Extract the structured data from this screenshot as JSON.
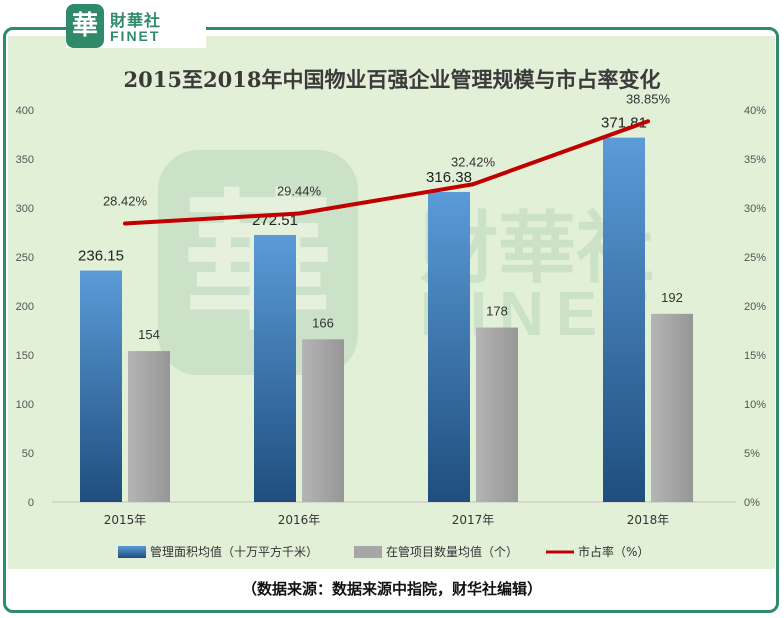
{
  "logo": {
    "mark": "華",
    "name_cn": "財華社",
    "name_en": "FINET"
  },
  "watermark": {
    "mark": "華",
    "name_cn": "財華社",
    "name_en": "FINET"
  },
  "source_note": "（数据来源：数据来源中指院，财华社编辑）",
  "colors": {
    "bar_area": "#3d7fc4",
    "bar_count": "#a6a6a6",
    "line_share": "#c00000",
    "frame": "#2f8a6a",
    "panel": "#e3f0d8"
  },
  "chart_data": {
    "type": "bar",
    "title": "2015至2018年中国物业百强企业管理规模与市占率变化",
    "categories": [
      "2015年",
      "2016年",
      "2017年",
      "2018年"
    ],
    "series": [
      {
        "name": "管理面积均值（十万平方千米）",
        "type": "bar",
        "axis": "left",
        "values": [
          236.15,
          272.51,
          316.38,
          371.81
        ],
        "labels": [
          "236.15",
          "272.51",
          "316.38",
          "371.81"
        ]
      },
      {
        "name": "在管项目数量均值（个）",
        "type": "bar",
        "axis": "left",
        "values": [
          154,
          166,
          178,
          192
        ],
        "labels": [
          "154",
          "166",
          "178",
          "192"
        ]
      },
      {
        "name": "市占率（%）",
        "type": "line",
        "axis": "right",
        "values": [
          28.42,
          29.44,
          32.42,
          38.85
        ],
        "labels": [
          "28.42%",
          "29.44%",
          "32.42%",
          "38.85%"
        ]
      }
    ],
    "left_axis": {
      "ylim": [
        0,
        400
      ],
      "ticks": [
        "0",
        "50",
        "100",
        "150",
        "200",
        "250",
        "300",
        "350",
        "400"
      ]
    },
    "right_axis": {
      "ylim": [
        0,
        40
      ],
      "ticks": [
        "0%",
        "5%",
        "10%",
        "15%",
        "20%",
        "25%",
        "30%",
        "35%",
        "40%"
      ]
    },
    "grid": false,
    "legend": "bottom"
  }
}
